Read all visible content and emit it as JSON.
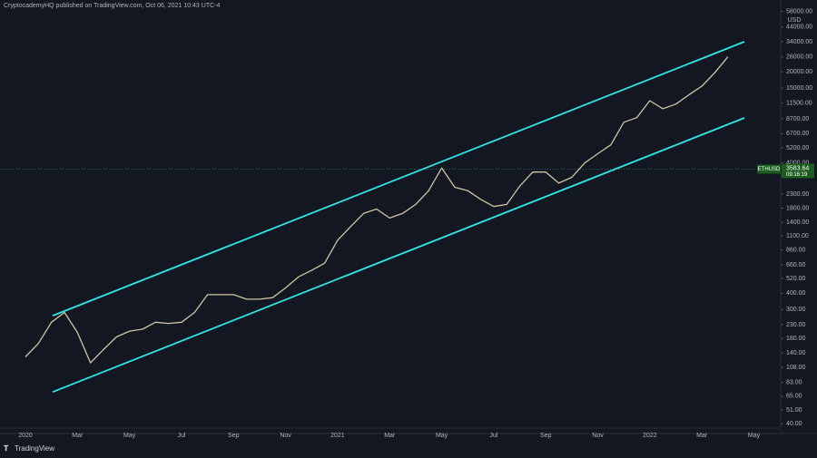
{
  "chart_data": {
    "type": "line",
    "header": "CryptocademyHQ published on TradingView.com, Oct 06, 2021 10:43 UTC-4",
    "footer": "TradingView",
    "currency": "USD",
    "symbol": "ETHUSD",
    "last_price": 3583.64,
    "countdown": "09:16:19",
    "log_scale": true,
    "categories": [
      "2020",
      null,
      null,
      null,
      "Mar",
      null,
      null,
      null,
      "May",
      null,
      null,
      null,
      "Jul",
      null,
      null,
      null,
      "Sep",
      null,
      null,
      null,
      "Nov",
      null,
      null,
      null,
      "2021",
      null,
      null,
      null,
      "Mar",
      null,
      null,
      null,
      "May",
      null,
      null,
      null,
      "Jul",
      null,
      null,
      null,
      "Sep",
      null,
      null,
      null,
      "Nov",
      null,
      null,
      null,
      "2022",
      null,
      null,
      null,
      "Mar",
      null,
      null,
      null,
      "May"
    ],
    "series": [
      {
        "color": "#cfc6a2",
        "values": [
          130,
          165,
          240,
          285,
          200,
          117,
          148,
          185,
          205,
          212,
          240,
          235,
          240,
          285,
          390,
          390,
          390,
          360,
          360,
          370,
          440,
          535,
          600,
          680,
          1020,
          1300,
          1640,
          1770,
          1510,
          1640,
          1920,
          2450,
          3650,
          2600,
          2450,
          2100,
          1850,
          1920,
          2650,
          3400,
          3400,
          2800,
          3100,
          4000,
          4700,
          5500,
          8200,
          8900,
          12000,
          10400,
          11300,
          13300,
          15500,
          19700,
          26000,
          null,
          null
        ]
      }
    ],
    "trendlines": [
      {
        "color": "#2ee6e6",
        "values": [
          269,
          34000
        ]
      },
      {
        "color": "#2ee6e6",
        "values": [
          70,
          8850
        ]
      }
    ],
    "ylim": [
      37,
      60500
    ],
    "yticks": [
      {
        "value": 58000,
        "label": "58000.00"
      },
      {
        "value": 44000,
        "label": "44000.00"
      },
      {
        "value": 34000,
        "label": "34000.00"
      },
      {
        "value": 26000,
        "label": "26000.00"
      },
      {
        "value": 20000,
        "label": "20000.00"
      },
      {
        "value": 15000,
        "label": "15000.00"
      },
      {
        "value": 11500,
        "label": "11500.00"
      },
      {
        "value": 8700,
        "label": "8700.00"
      },
      {
        "value": 6700,
        "label": "6700.00"
      },
      {
        "value": 5200,
        "label": "5200.00"
      },
      {
        "value": 4000,
        "label": "4000.00"
      },
      {
        "value": 2300,
        "label": "2300.00"
      },
      {
        "value": 1800,
        "label": "1800.00"
      },
      {
        "value": 1400,
        "label": "1400.00"
      },
      {
        "value": 1100,
        "label": "1100.00"
      },
      {
        "value": 860,
        "label": "860.00"
      },
      {
        "value": 660,
        "label": "660.00"
      },
      {
        "value": 520,
        "label": "520.00"
      },
      {
        "value": 400,
        "label": "400.00"
      },
      {
        "value": 300,
        "label": "300.00"
      },
      {
        "value": 230,
        "label": "230.00"
      },
      {
        "value": 180,
        "label": "180.00"
      },
      {
        "value": 140,
        "label": "140.00"
      },
      {
        "value": 108,
        "label": "108.00"
      },
      {
        "value": 83,
        "label": "83.00"
      },
      {
        "value": 65,
        "label": "65.00"
      },
      {
        "value": 51,
        "label": "51.00"
      },
      {
        "value": 40,
        "label": "40.00"
      }
    ]
  }
}
